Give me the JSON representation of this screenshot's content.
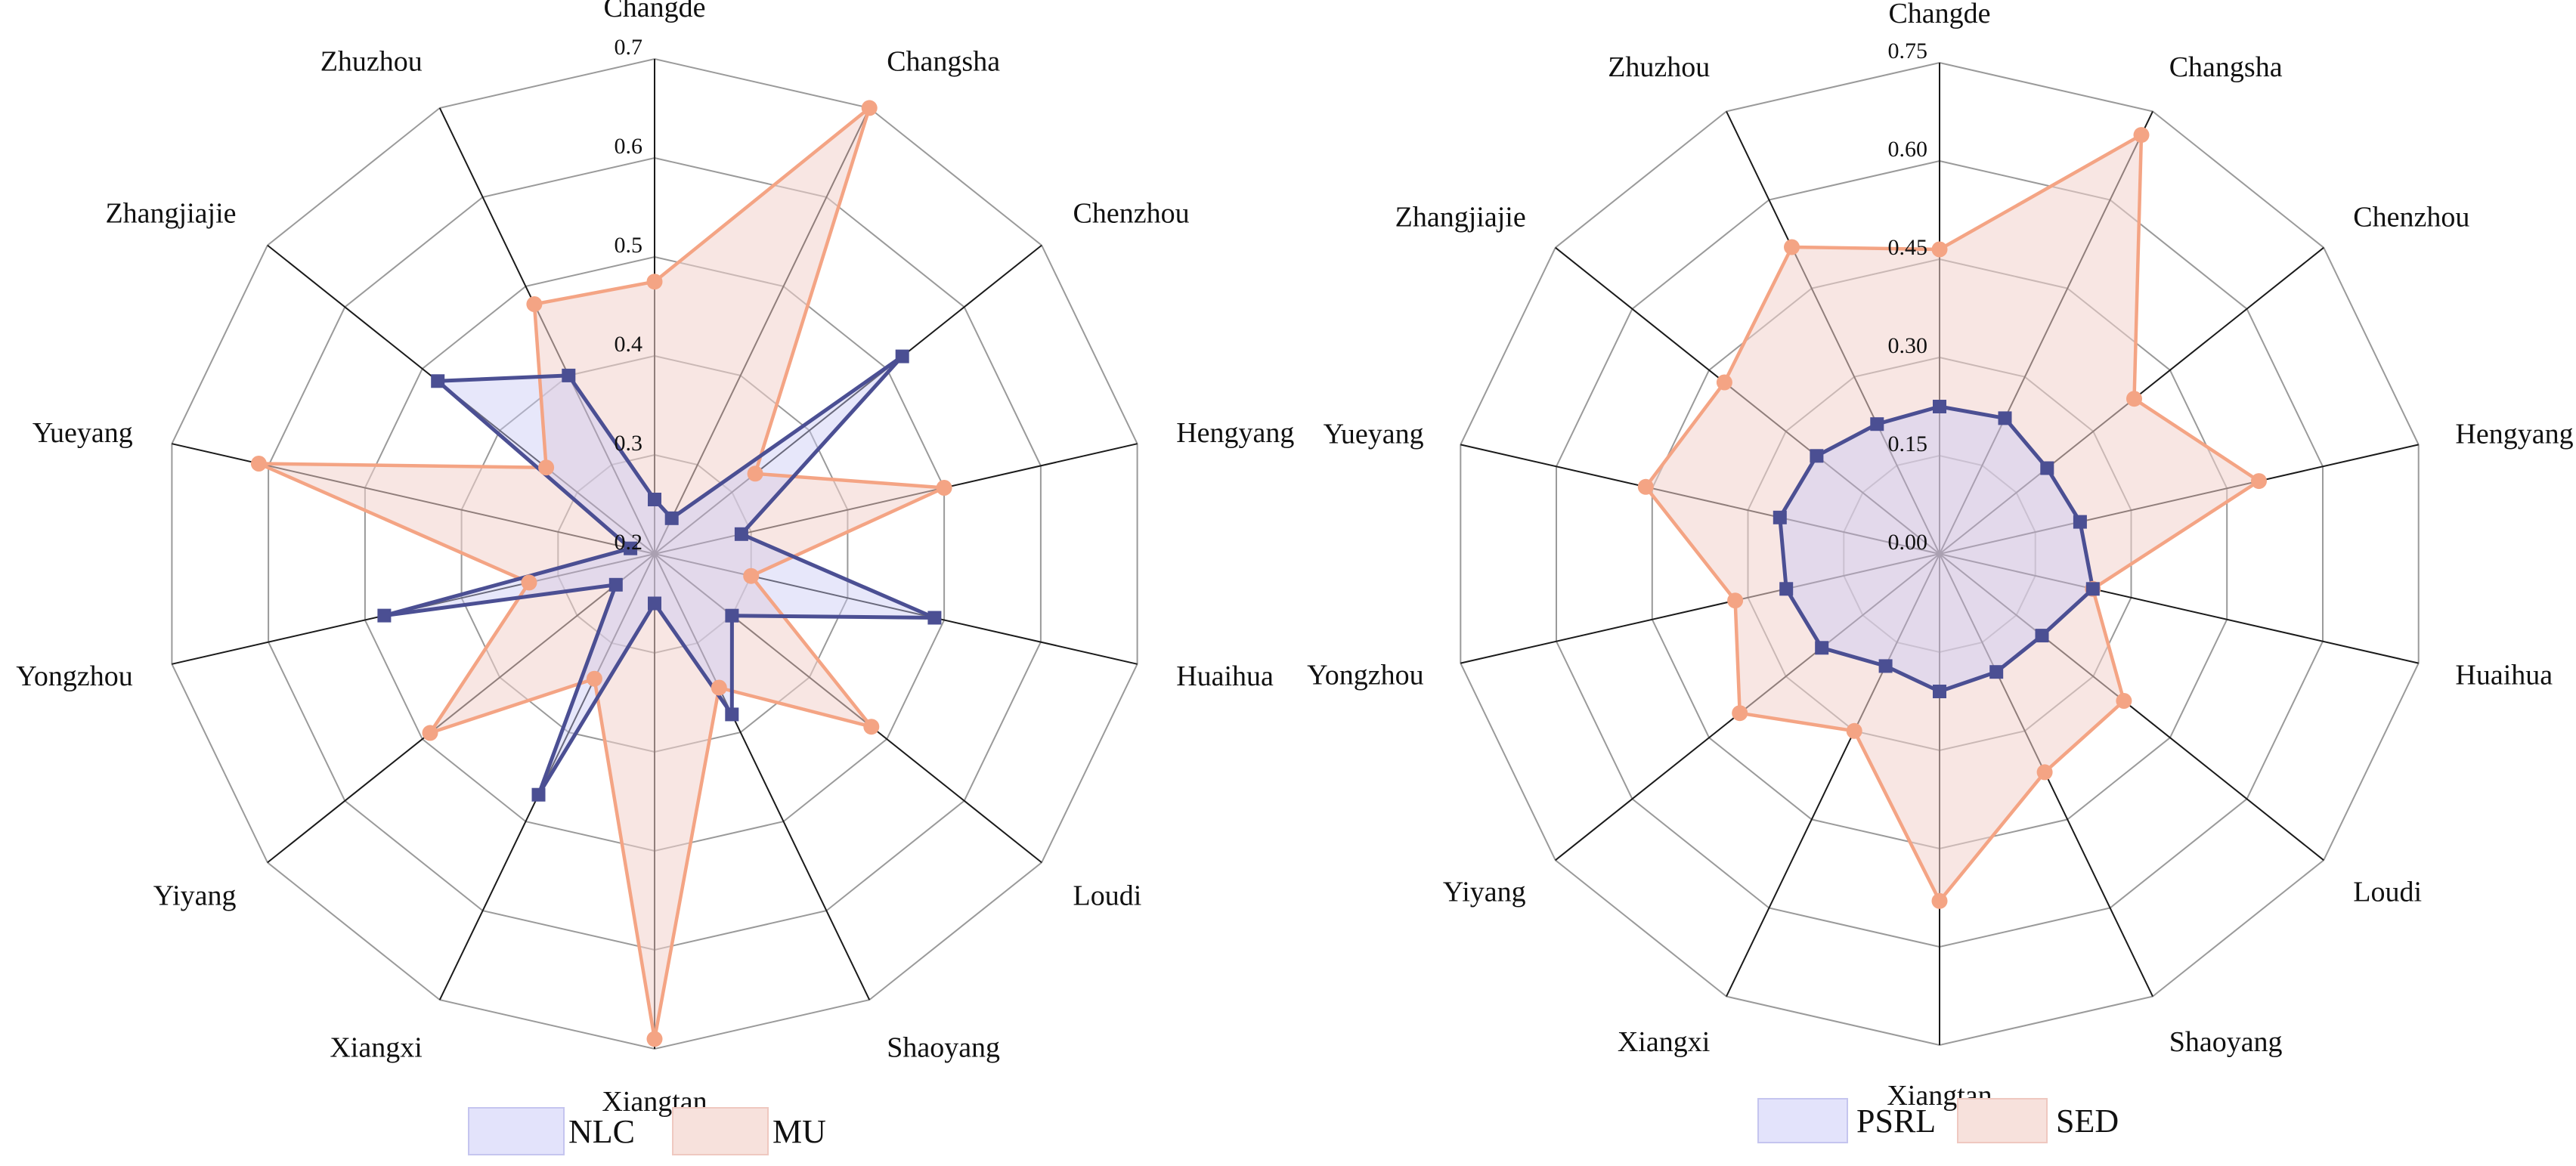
{
  "colors": {
    "grid": "#9a9a9a",
    "spoke": "#1a1a1a",
    "blue_line": "#4b4f93",
    "blue_fill": "#c9c9f3",
    "orange_line": "#f4a484",
    "orange_fill": "#f3d2cc",
    "legend_blue_fill": "#e3e3fb",
    "legend_blue_stroke": "#c5c5ef",
    "legend_orange_fill": "#f7e1dc",
    "legend_orange_stroke": "#efc8c0"
  },
  "chart_data": [
    {
      "type": "radar",
      "categories": [
        "Changde",
        "Changsha",
        "Chenzhou",
        "Hengyang",
        "Huaihua",
        "Loudi",
        "Shaoyang",
        "Xiangtan",
        "Xiangxi",
        "Yiyang",
        "Yongzhou",
        "Yueyang",
        "Zhangjiajie",
        "Zhuzhou"
      ],
      "rlim": [
        0.2,
        0.7
      ],
      "ticks": [
        0.2,
        0.3,
        0.4,
        0.5,
        0.6,
        0.7
      ],
      "tick_labels": [
        "0.2",
        "0.3",
        "0.4",
        "0.5",
        "0.6",
        "0.7"
      ],
      "grid": true,
      "legend_position": "bottom",
      "series": [
        {
          "name": "NLC",
          "marker": "square",
          "values": [
            0.255,
            0.24,
            0.52,
            0.29,
            0.49,
            0.3,
            0.38,
            0.25,
            0.47,
            0.25,
            0.48,
            0.225,
            0.48,
            0.4
          ]
        },
        {
          "name": "MU",
          "marker": "circle",
          "values": [
            0.475,
            0.7,
            0.33,
            0.5,
            0.3,
            0.48,
            0.35,
            0.69,
            0.34,
            0.49,
            0.33,
            0.61,
            0.34,
            0.48
          ]
        }
      ]
    },
    {
      "type": "radar",
      "categories": [
        "Changde",
        "Changsha",
        "Chenzhou",
        "Hengyang",
        "Huaihua",
        "Loudi",
        "Shaoyang",
        "Xiangtan",
        "Xiangxi",
        "Yiyang",
        "Yongzhou",
        "Yueyang",
        "Zhangjiajie",
        "Zhuzhou"
      ],
      "rlim": [
        0.0,
        0.75
      ],
      "ticks": [
        0.0,
        0.15,
        0.3,
        0.45,
        0.6,
        0.75
      ],
      "tick_labels": [
        "0.00",
        "0.15",
        "0.30",
        "0.45",
        "0.60",
        "0.75"
      ],
      "grid": true,
      "legend_position": "bottom",
      "series": [
        {
          "name": "PSRL",
          "marker": "square",
          "values": [
            0.225,
            0.23,
            0.21,
            0.22,
            0.24,
            0.2,
            0.2,
            0.21,
            0.19,
            0.23,
            0.24,
            0.25,
            0.24,
            0.22
          ]
        },
        {
          "name": "SED",
          "marker": "circle",
          "values": [
            0.465,
            0.71,
            0.38,
            0.5,
            0.24,
            0.36,
            0.37,
            0.53,
            0.3,
            0.39,
            0.32,
            0.46,
            0.42,
            0.52
          ]
        }
      ]
    }
  ]
}
